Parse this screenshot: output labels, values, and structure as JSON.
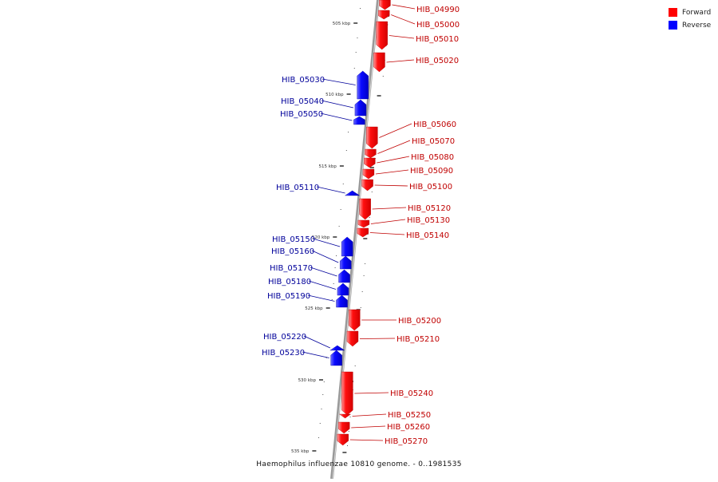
{
  "caption": "Haemophilus influenzae 10810 genome. - 0..1981535",
  "legend": [
    {
      "label": "Forward",
      "color": "#ff0000"
    },
    {
      "label": "Reverse",
      "color": "#0000ff"
    }
  ],
  "colors": {
    "forward": "#ff0000",
    "forward_label": "#c00000",
    "reverse": "#0000ff",
    "reverse_label": "#00009a",
    "backbone": "#8c8c8c"
  },
  "ticks": [
    {
      "label": "505 kbp"
    },
    {
      "label": "510 kbp"
    },
    {
      "label": "515 kbp"
    },
    {
      "label": "520 kbp"
    },
    {
      "label": "525 kbp"
    },
    {
      "label": "530 kbp"
    },
    {
      "label": "535 kbp"
    }
  ],
  "genes": [
    {
      "id": "HIB_04990",
      "strand": "forward"
    },
    {
      "id": "HIB_05000",
      "strand": "forward"
    },
    {
      "id": "HIB_05010",
      "strand": "forward"
    },
    {
      "id": "HIB_05020",
      "strand": "forward"
    },
    {
      "id": "HIB_05030",
      "strand": "reverse"
    },
    {
      "id": "HIB_05040",
      "strand": "reverse"
    },
    {
      "id": "HIB_05050",
      "strand": "reverse"
    },
    {
      "id": "HIB_05060",
      "strand": "forward"
    },
    {
      "id": "HIB_05070",
      "strand": "forward"
    },
    {
      "id": "HIB_05080",
      "strand": "forward"
    },
    {
      "id": "HIB_05090",
      "strand": "forward"
    },
    {
      "id": "HIB_05100",
      "strand": "forward"
    },
    {
      "id": "HIB_05110",
      "strand": "reverse"
    },
    {
      "id": "HIB_05120",
      "strand": "forward"
    },
    {
      "id": "HIB_05130",
      "strand": "forward"
    },
    {
      "id": "HIB_05140",
      "strand": "forward"
    },
    {
      "id": "HIB_05150",
      "strand": "reverse"
    },
    {
      "id": "HIB_05160",
      "strand": "reverse"
    },
    {
      "id": "HIB_05170",
      "strand": "reverse"
    },
    {
      "id": "HIB_05180",
      "strand": "reverse"
    },
    {
      "id": "HIB_05190",
      "strand": "reverse"
    },
    {
      "id": "HIB_05200",
      "strand": "forward"
    },
    {
      "id": "HIB_05210",
      "strand": "forward"
    },
    {
      "id": "HIB_05220",
      "strand": "reverse"
    },
    {
      "id": "HIB_05230",
      "strand": "reverse"
    },
    {
      "id": "HIB_05240",
      "strand": "forward"
    },
    {
      "id": "HIB_05250",
      "strand": "forward"
    },
    {
      "id": "HIB_05260",
      "strand": "forward"
    },
    {
      "id": "HIB_05270",
      "strand": "forward"
    }
  ]
}
